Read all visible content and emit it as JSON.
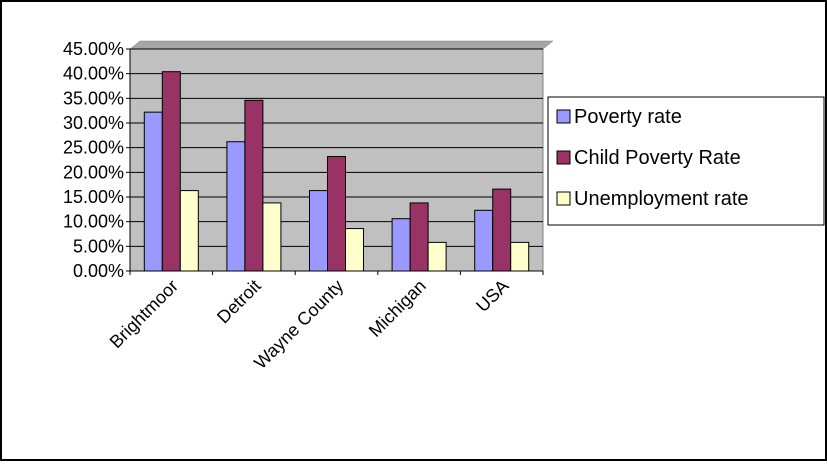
{
  "chart_data": {
    "type": "bar",
    "categories": [
      "Brightmoor",
      "Detroit",
      "Wayne County",
      "Michigan",
      "USA"
    ],
    "series": [
      {
        "name": "Poverty rate",
        "color": "#9999ff",
        "values": [
          0.322,
          0.262,
          0.163,
          0.106,
          0.123
        ]
      },
      {
        "name": "Child Poverty Rate",
        "color": "#993366",
        "values": [
          0.404,
          0.346,
          0.232,
          0.138,
          0.166
        ]
      },
      {
        "name": "Unemployment rate",
        "color": "#ffffcc",
        "values": [
          0.163,
          0.138,
          0.086,
          0.058,
          0.058
        ]
      }
    ],
    "y_ticks": [
      "0.00%",
      "5.00%",
      "10.00%",
      "15.00%",
      "20.00%",
      "25.00%",
      "30.00%",
      "35.00%",
      "40.00%",
      "45.00%"
    ],
    "ylim": [
      0,
      0.45
    ],
    "grid": true,
    "plot_background": "#c0c0c0",
    "legend_position": "right",
    "title": "",
    "xlabel": "",
    "ylabel": ""
  }
}
